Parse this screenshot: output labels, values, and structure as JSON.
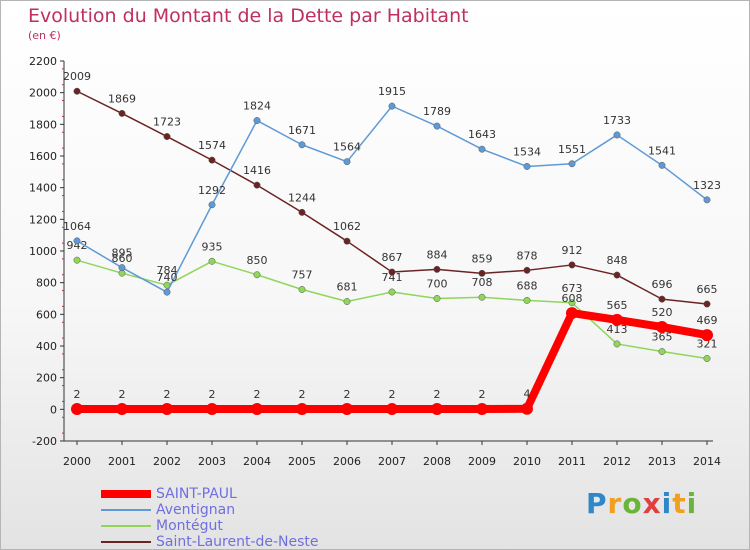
{
  "chart_data": {
    "type": "line",
    "title": "Evolution du Montant de la Dette par Habitant",
    "subtitle": "(en €)",
    "x": [
      "2000",
      "2001",
      "2002",
      "2003",
      "2004",
      "2005",
      "2006",
      "2007",
      "2008",
      "2009",
      "2010",
      "2011",
      "2012",
      "2013",
      "2014"
    ],
    "ylim": [
      -200,
      2200
    ],
    "yticks": [
      -200,
      0,
      200,
      400,
      600,
      800,
      1000,
      1200,
      1400,
      1600,
      1800,
      2000,
      2200
    ],
    "grid": false,
    "legend_position": "bottom-left",
    "series": [
      {
        "name": "Saint-Laurent-de-Neste",
        "color": "#6b2424",
        "values": [
          2009,
          1869,
          1723,
          1574,
          1416,
          1244,
          1062,
          867,
          884,
          859,
          878,
          912,
          848,
          696,
          665
        ]
      },
      {
        "name": "Montégut",
        "color": "#8fd65a",
        "values": [
          942,
          860,
          784,
          935,
          850,
          757,
          681,
          741,
          700,
          708,
          688,
          673,
          413,
          365,
          321
        ]
      },
      {
        "name": "Aventignan",
        "color": "#5f9ad6",
        "values": [
          1064,
          895,
          740,
          1292,
          1824,
          1671,
          1564,
          1915,
          1789,
          1643,
          1534,
          1551,
          1733,
          1541,
          1323
        ]
      },
      {
        "name": "SAINT-PAUL",
        "color": "#ff0000",
        "values": [
          2,
          2,
          2,
          2,
          2,
          2,
          2,
          2,
          2,
          2,
          4,
          608,
          565,
          520,
          469
        ]
      }
    ]
  },
  "legend": {
    "items": [
      {
        "label": "SAINT-PAUL",
        "color": "#ff0000"
      },
      {
        "label": "Aventignan",
        "color": "#5f9ad6"
      },
      {
        "label": "Montégut",
        "color": "#8fd65a"
      },
      {
        "label": "Saint-Laurent-de-Neste",
        "color": "#6b2424"
      }
    ]
  },
  "logo": {
    "p": "P",
    "r": "r",
    "o": "o",
    "x": "x",
    "i1": "i",
    "t": "t",
    "i2": "i"
  }
}
